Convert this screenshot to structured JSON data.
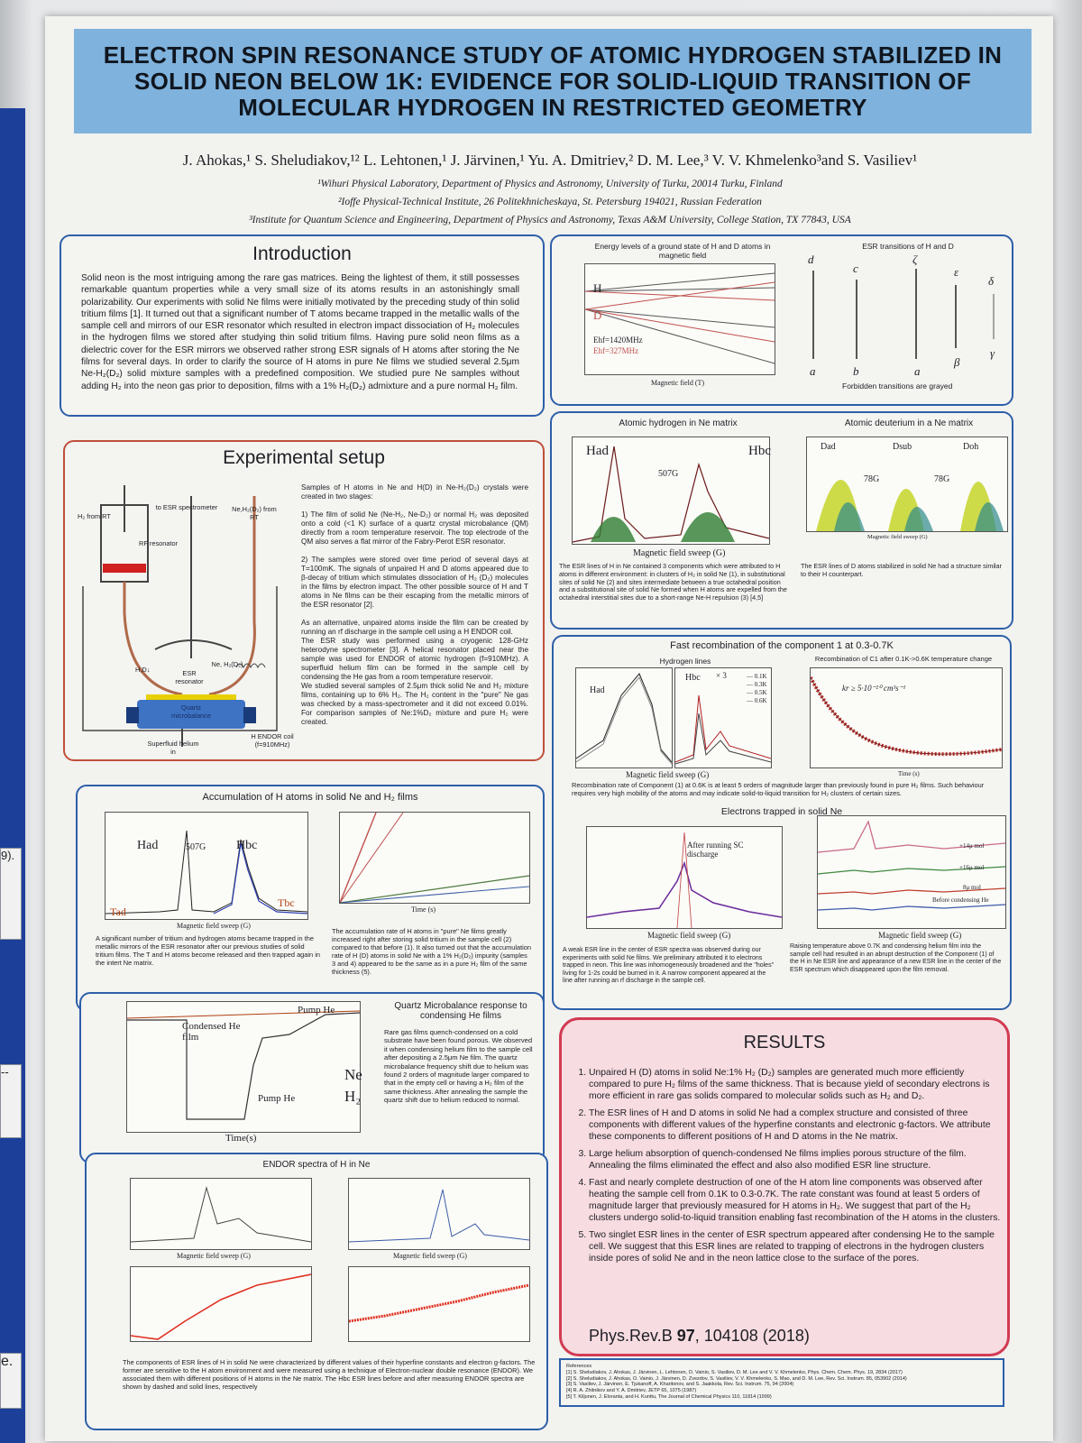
{
  "title": "ELECTRON SPIN RESONANCE STUDY OF ATOMIC HYDROGEN STABILIZED IN SOLID NEON BELOW 1K: EVIDENCE FOR SOLID-LIQUID TRANSITION OF  MOLECULAR HYDROGEN IN RESTRICTED GEOMETRY",
  "authors": "J. Ahokas,¹ S. Sheludiakov,¹² L. Lehtonen,¹ J. Järvinen,¹ Yu. A. Dmitriev,² D. M. Lee,³ V. V. Khmelenko³and S. Vasiliev¹",
  "affiliations": [
    "¹Wihuri Physical Laboratory, Department of Physics and Astronomy, University of Turku, 20014 Turku, Finland",
    "²Ioffe Physical-Technical Institute, 26 Politekhnicheskaya, St. Petersburg 194021, Russian Federation",
    "³Institute for Quantum Science and Engineering, Department of Physics and Astronomy, Texas A&M University, College Station, TX 77843, USA"
  ],
  "left_scraps": [
    "9).",
    "--",
    "e."
  ],
  "intro": {
    "heading": "Introduction",
    "text": "Solid neon is the most intriguing among the rare gas matrices. Being the lightest of them, it still possesses remarkable quantum properties while a very small size of its atoms results in an astonishingly small polarizability. Our experiments with solid Ne films were initially motivated by the preceding study of thin solid tritium films [1]. It turned out that a significant number of T atoms became trapped in the metallic walls of the sample cell and mirrors of our ESR resonator which resulted in electron impact dissociation of H₂ molecules in the hydrogen films we stored after studying thin solid tritium films. Having pure solid neon films as a dielectric cover for the ESR mirrors we observed rather strong ESR signals of H atoms after storing the Ne films for several days. In order to clarify the source of H atoms in pure Ne films we studied several 2.5μm Ne-H₂(D₂) solid mixture samples with a predefined composition. We studied pure Ne samples without adding H₂ into the neon gas prior to deposition, films with a 1% H₂(D₂) admixture and a pure normal H₂ film."
  },
  "setup": {
    "heading": "Experimental setup",
    "diagram_labels": [
      "H₂ from RT",
      "to ESR spectrometer",
      "Ne,H₂(D₂) from RT",
      "RF resonator",
      "H,D↓",
      "ESR resonator",
      "Ne, H₂(D₂)",
      "Quartz microbalance",
      "Superfluid helium in",
      "H ENDOR coil (f=910MHz)"
    ],
    "text": "      Samples of H atoms in Ne and  H(D) in Ne-H₂(D₂) crystals were created in two stages:\n\n1) The film of solid Ne (Ne-H₂, Ne-D₂) or normal H₂ was deposited onto a cold (<1 K) surface of a quartz crystal microbalance (QM) directly from a room temperature reservoir.  The top electrode of the QM also    serves a flat mirror of the Fabry-Perot ESR resonator.\n\n2) The samples were stored over time period of several days at T=100mK. The signals of unpaired H and D atoms appeared due to β-decay of tritium which stimulates dissociation of H₂ (D₂) molecules in the films by electron impact. The other possible source of H and T atoms in Ne films can be their escaping from the metallic mirrors of the ESR resonator [2].\n\nAs an alternative, unpaired atoms inside the film can be created by running an rf discharge in the sample cell using a H ENDOR coil.\n      The ESR study was performed using a cryogenic 128-GHz heterodyne spectrometer [3]. A helical resonator placed near the sample was used for ENDOR of atomic hydrogen (f=910MHz). A superfluid helium film can be formed in the sample cell by condensing the He gas from a room temperature reservoir.\n      We studied several samples of 2.5μm thick solid Ne and H₂ mixture films, containing up to 6% H₂. The H₂ content in the \"pure\" Ne gas was checked by a mass-spectrometer and it did not exceed  0.01%. For comparison samples of Ne:1%D₂ mixture and pure H₂ were created."
  },
  "accumulation": {
    "heading": "Accumulation of H atoms in solid Ne and H₂ films",
    "labels": [
      "Had",
      "507G",
      "Hbc",
      "Tad",
      "Tbc"
    ],
    "xlabel_left": "Magnetic field sweep (G)",
    "xlabel_right": "Time (s)",
    "caption_left": "A significant number of tritium and hydrogen atoms became trapped in the metallic mirrors of the ESR resonator after our previous studies of solid tritium films. The T and H atoms become released and then trapped again in the intert Ne matrix.",
    "caption_right": "The accumulation rate of H atoms in \"pure\" Ne films greatly increased right after storing solid tritium in the sample cell (2) compared to that before (1). It also turned out that the accumulation rate of H (D) atoms in solid Ne with a 1% H₂(D₂) impurity (samples 3 and 4) appeared to be the same as in a pure H₂ film of the same thickness (5)."
  },
  "qcm": {
    "heading": "Quartz Microbalance response to condensing He films",
    "labels": [
      "Condensed He film",
      "Pump He",
      "Pump He",
      "Ne",
      "H₂"
    ],
    "xlabel": "Time(s)",
    "caption": "Rare gas films quench-condensed on a cold substrate have been found porous. We observed it when condensing helium film to the sample cell after depositing a 2.5μm Ne film. The quartz microbalance frequency shift due to helium was found 2 orders of magnitude larger compared to that in the empty cell or having a H₂ film of the same thickness. After annealing the sample the quartz shift due to helium reduced to normal."
  },
  "endor": {
    "heading": "ENDOR spectra  of H in Ne",
    "xlabel_top_left": "Magnetic field sweep (G)",
    "xlabel_top_right": "Magnetic field sweep (G)",
    "caption": "The components of ESR lines of H in solid Ne were characterized by different values of their hyperfine constants and electron g-factors. The former are sensitive to the H atom environment and were measured using a technique of Electron-nuclear double resonance (ENDOR). We associated them with different positions of H atoms in the Ne matrix. The Hbc ESR lines before and after measuring ENDOR spectra are shown by dashed and solid lines, respectively"
  },
  "energy": {
    "title": "Energy levels of a ground state of H and D atoms in magnetic field",
    "labels": [
      "H",
      "D",
      "Ehf=1420MHz",
      "Ehf=327MHz"
    ],
    "xlabel": "Magnetic field (T)",
    "transitions_title": "ESR transitions of H and D",
    "transition_labels": [
      "d",
      "c",
      "ζ",
      "ε",
      "δ",
      "a",
      "b",
      "a",
      "β",
      "γ"
    ],
    "transitions_note": "Forbidden transitions are grayed"
  },
  "hd": {
    "title_h": "Atomic  hydrogen in Ne matrix",
    "title_d": "Atomic deuterium in a Ne matrix",
    "labels": [
      "Had",
      "507G",
      "Hbc",
      "Dad",
      "Dsub",
      "Doh",
      "78G",
      "78G"
    ],
    "xlabel_h": "Magnetic field sweep (G)",
    "xlabel_d": "Magnetic field sweep (G)",
    "caption_h": "The ESR lines of H in Ne contained 3 components which were attributed to H atoms in different environment: in clusters of H₂ in solid Ne (1), in substitutional sites of solid Ne (2) and sites intermediate between a true octahedral position and a substitutional site of solid Ne formed when H atoms are expelled from the octahedral interstitial sites due to a short-range Ne-H repulsion (3) [4,5]",
    "caption_d": "The ESR lines of D atoms stabilized in solid Ne had a structure similar to their H counterpart."
  },
  "recomb": {
    "heading": "Fast recombination of the component 1 at 0.3-0.7K",
    "hydrogen_lines_title": "Hydrogen lines",
    "c1_title": "Recombination of C1 after 0.1K->0.6K temperature change",
    "labels": [
      "Had",
      "Hbc",
      "× 3",
      "kr ≥ 5·10⁻²⁰ cm³s⁻¹"
    ],
    "legend": "— 0.1K\n— 0.3K\n— 0.5K\n— 0.6K",
    "xlabel_lines": "Magnetic field sweep (G)",
    "xlabel_c1": "Time (s)",
    "caption": "Recombination rate of Component (1) at 0.6K is at least 5 orders of magnitude larger than previously found in pure H₂ films. Such behaviour requires very high mobility of the atoms and may indicate solid-to-liquid transition for H₂ clusters of certain sizes."
  },
  "electrons": {
    "heading": "Electrons trapped in solid Ne",
    "labels": [
      "After running SC discharge",
      "+14μ mol",
      "+16μ mol",
      "8μ mol",
      "Before condensing He"
    ],
    "xlabel_left": "Magnetic field sweep (G)",
    "xlabel_right": "Magnetic field sweep (G)",
    "caption_left": "A weak ESR line in the center of ESR spectra was observed during our experiments with solid Ne films. We preliminary attributed it to electrons trapped in neon. This line was inhomogeneously broadened and the \"holes\" living for 1-2s could be burned in it. A narrow component appeared at the line after running an rf discharge in the sample cell.",
    "caption_right": "Raising temperature above  0.7K and condensing helium film into the sample cell had resulted in an abrupt destruction of the Component (1) of the H in Ne ESR line and appearance of a new ESR line in the center of the ESR spectrum which disappeared upon the film removal."
  },
  "results": {
    "heading": "RESULTS",
    "items": [
      "Unpaired H (D) atoms in solid Ne:1% H₂ (D₂) samples are generated much more efficiently compared to pure H₂  films of the same thickness. That is because yield of secondary electrons is more efficient in rare gas solids compared to molecular solids such as H₂ and D₂.",
      "The ESR lines of H and D atoms in solid Ne had a complex structure and consisted of three components with different values of the hyperfine constants and electronic g-factors. We attribute these components to different positions of H and D atoms in the Ne matrix.",
      "Large helium absorption of quench-condensed Ne films implies porous structure of the film. Annealing the films eliminated the effect and also also modified ESR line structure.",
      "Fast and nearly complete destruction of one of the H atom line components was observed after heating the sample cell from 0.1K to 0.3-0.7K. The rate constant was found at least 5 orders of magnitude larger that previously measured for H atoms in H₂. We suggest that part of the H₂ clusters undergo solid-to-liquid transition enabling fast recombination of the H atoms in the clusters.",
      "Two singlet ESR lines in the center of ESR spectrum appeared after condensing He to the sample cell. We suggest that this ESR lines are related to trapping of electrons in the hydrogen clusters inside pores of solid Ne and in the neon lattice close to the surface of the pores."
    ],
    "citation_journal": "Phys.Rev.B ",
    "citation_volume": "97",
    "citation_pages": ", 104108 (2018)"
  },
  "references": "References\n[1] S. Sheludiakov, J. Ahokas, J. Järvinen, L. Lehtonen, O. Vainio, S. Vasiliev, D. M. Lee and V. V. Khmelenko, Phys. Chem. Chem. Phys. 19, 2834 (2017)\n[2] S. Sheludiakov, J. Ahokas, O. Vainio, J. Järvinen, D. Zvezdov, S. Vasiliev, V. V. Khmelenko, S. Mao, and D. M. Lee, Rev. Sci. Instrum. 85, 053902 (2014)\n[3] S. Vasiliev, J. Järvinen, E. Tjukanoff, A. Kharitonov, and S. Jaakkola, Rev. Sci. Instrum. 75, 94 (2004)\n[4] R. A. Zhitnikov and Y. A. Dmitriev, JETP 65, 1075 (1987)\n[5] T. Kiljunen, J. Eloranta, and H. Kunttu, The Journal of Chemical Physics 110, 11814 (1999)"
}
